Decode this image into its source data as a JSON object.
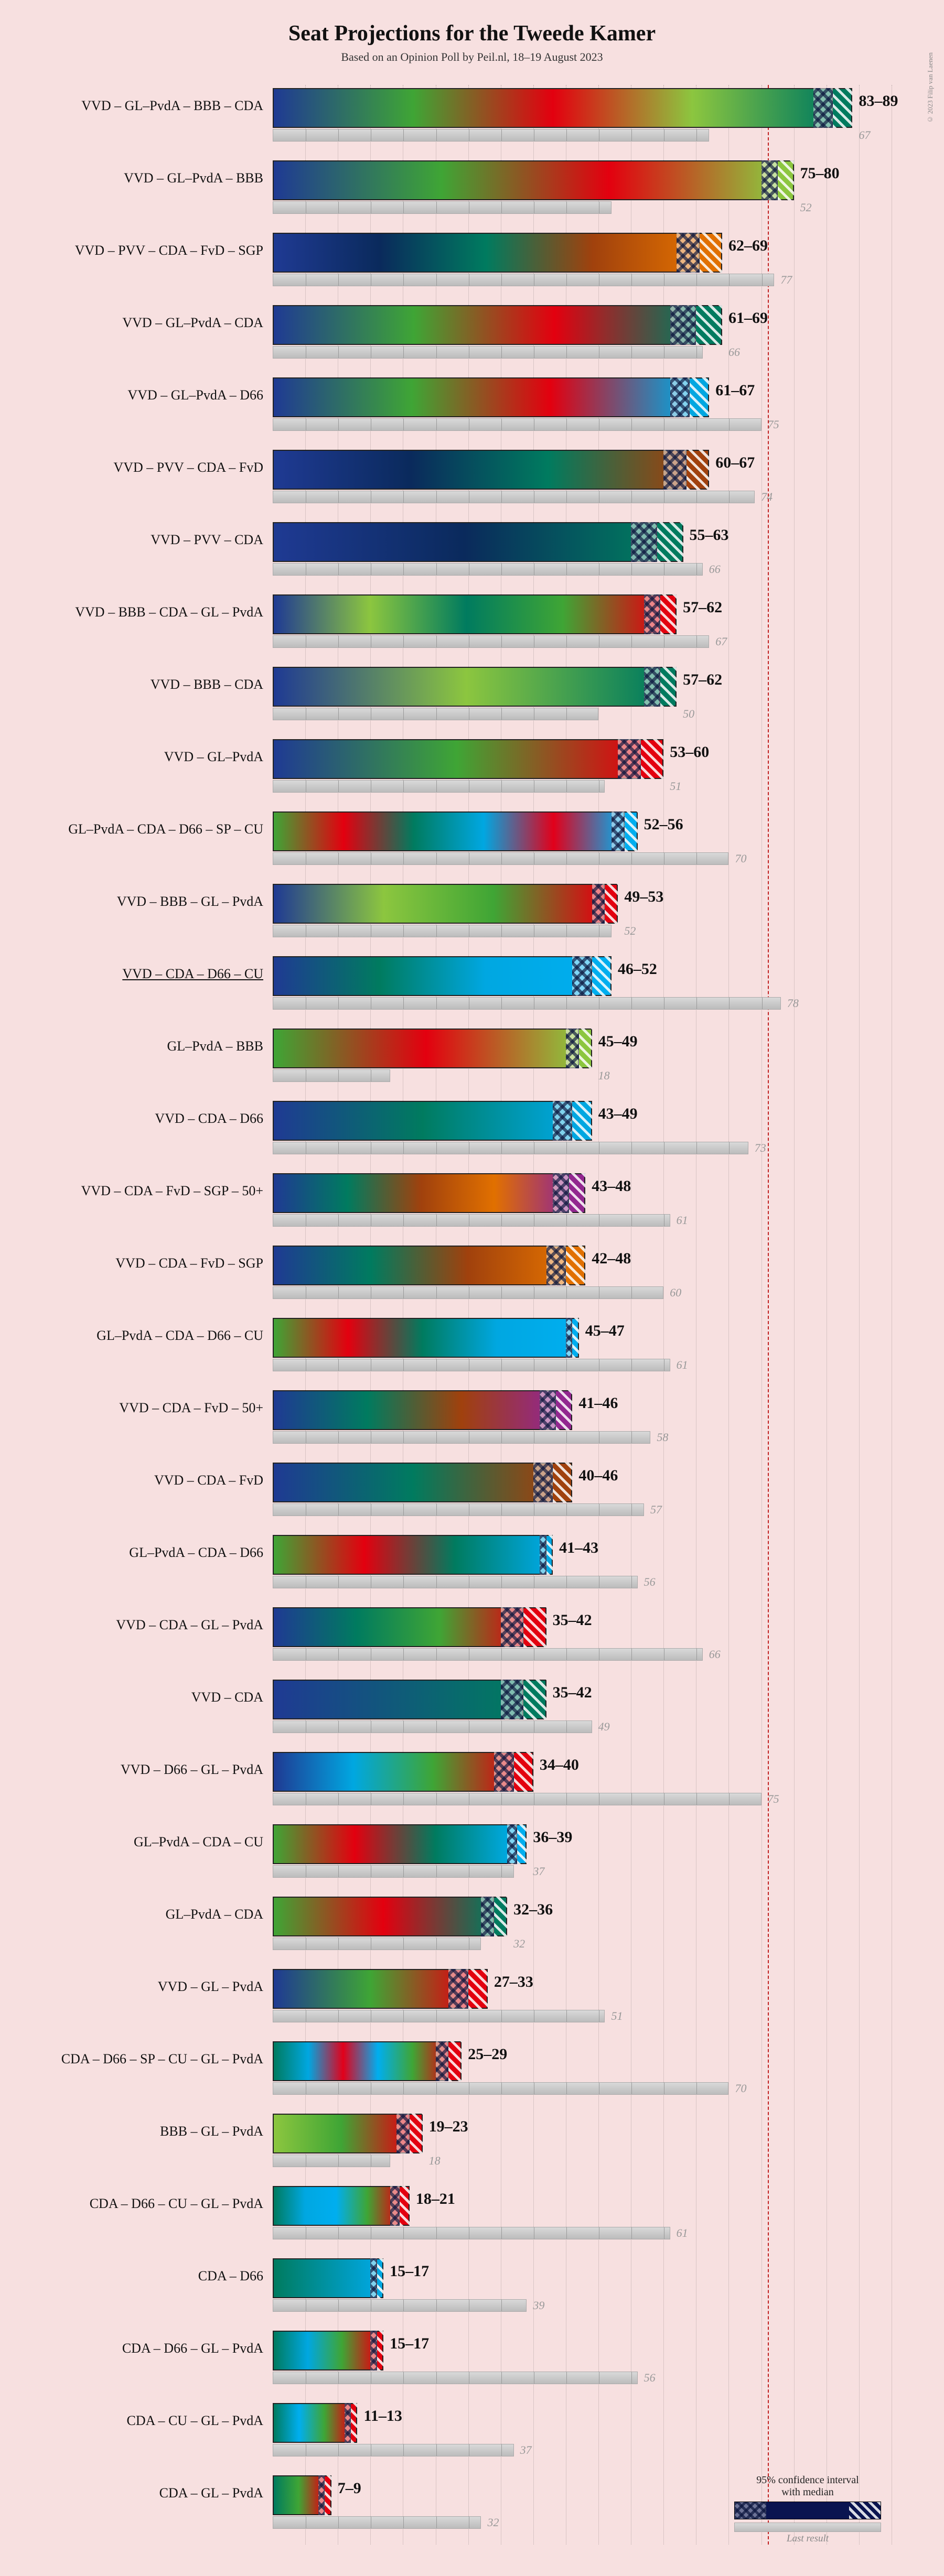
{
  "title": "Seat Projections for the Tweede Kamer",
  "subtitle": "Based on an Opinion Poll by Peil.nl, 18–19 August 2023",
  "copyright": "© 2023 Filip van Laenen",
  "background_color": "#f7e0e0",
  "scale": {
    "min": 0,
    "max": 95,
    "pixels": 1180,
    "grid_step": 5,
    "majority": 76
  },
  "party_colors": {
    "VVD": "#1f3a93",
    "GL": "#3fa535",
    "PvdA": "#e3000f",
    "BBB": "#8cc63f",
    "CDA": "#007b5f",
    "PVV": "#0a2a5c",
    "FvD": "#a0410d",
    "SGP": "#e17000",
    "D66": "#00a7e1",
    "SP": "#e2001a",
    "CU": "#00aeef",
    "50+": "#92278f"
  },
  "legend": {
    "ci_label": "95% confidence interval\nwith median",
    "last_label": "Last result"
  },
  "rows": [
    {
      "label": "VVD – GL–PvdA – BBB – CDA",
      "parties": [
        "VVD",
        "GL",
        "PvdA",
        "BBB",
        "CDA"
      ],
      "low": 83,
      "high": 89,
      "last": 67,
      "underline": false
    },
    {
      "label": "VVD – GL–PvdA – BBB",
      "parties": [
        "VVD",
        "GL",
        "PvdA",
        "BBB"
      ],
      "low": 75,
      "high": 80,
      "last": 52,
      "underline": false
    },
    {
      "label": "VVD – PVV – CDA – FvD – SGP",
      "parties": [
        "VVD",
        "PVV",
        "CDA",
        "FvD",
        "SGP"
      ],
      "low": 62,
      "high": 69,
      "last": 77,
      "underline": false
    },
    {
      "label": "VVD – GL–PvdA – CDA",
      "parties": [
        "VVD",
        "GL",
        "PvdA",
        "CDA"
      ],
      "low": 61,
      "high": 69,
      "last": 66,
      "underline": false
    },
    {
      "label": "VVD – GL–PvdA – D66",
      "parties": [
        "VVD",
        "GL",
        "PvdA",
        "D66"
      ],
      "low": 61,
      "high": 67,
      "last": 75,
      "underline": false
    },
    {
      "label": "VVD – PVV – CDA – FvD",
      "parties": [
        "VVD",
        "PVV",
        "CDA",
        "FvD"
      ],
      "low": 60,
      "high": 67,
      "last": 74,
      "underline": false
    },
    {
      "label": "VVD – PVV – CDA",
      "parties": [
        "VVD",
        "PVV",
        "CDA"
      ],
      "low": 55,
      "high": 63,
      "last": 66,
      "underline": false
    },
    {
      "label": "VVD – BBB – CDA – GL – PvdA",
      "parties": [
        "VVD",
        "BBB",
        "CDA",
        "GL",
        "PvdA"
      ],
      "low": 57,
      "high": 62,
      "last": 67,
      "underline": false
    },
    {
      "label": "VVD – BBB – CDA",
      "parties": [
        "VVD",
        "BBB",
        "CDA"
      ],
      "low": 57,
      "high": 62,
      "last": 50,
      "underline": false
    },
    {
      "label": "VVD – GL–PvdA",
      "parties": [
        "VVD",
        "GL",
        "PvdA"
      ],
      "low": 53,
      "high": 60,
      "last": 51,
      "underline": false
    },
    {
      "label": "GL–PvdA – CDA – D66 – SP – CU",
      "parties": [
        "GL",
        "PvdA",
        "CDA",
        "D66",
        "SP",
        "CU"
      ],
      "low": 52,
      "high": 56,
      "last": 70,
      "underline": false
    },
    {
      "label": "VVD – BBB – GL – PvdA",
      "parties": [
        "VVD",
        "BBB",
        "GL",
        "PvdA"
      ],
      "low": 49,
      "high": 53,
      "last": 52,
      "underline": false
    },
    {
      "label": "VVD – CDA – D66 – CU",
      "parties": [
        "VVD",
        "CDA",
        "D66",
        "CU"
      ],
      "low": 46,
      "high": 52,
      "last": 78,
      "underline": true
    },
    {
      "label": "GL–PvdA – BBB",
      "parties": [
        "GL",
        "PvdA",
        "BBB"
      ],
      "low": 45,
      "high": 49,
      "last": 18,
      "underline": false
    },
    {
      "label": "VVD – CDA – D66",
      "parties": [
        "VVD",
        "CDA",
        "D66"
      ],
      "low": 43,
      "high": 49,
      "last": 73,
      "underline": false
    },
    {
      "label": "VVD – CDA – FvD – SGP – 50+",
      "parties": [
        "VVD",
        "CDA",
        "FvD",
        "SGP",
        "50+"
      ],
      "low": 43,
      "high": 48,
      "last": 61,
      "underline": false
    },
    {
      "label": "VVD – CDA – FvD – SGP",
      "parties": [
        "VVD",
        "CDA",
        "FvD",
        "SGP"
      ],
      "low": 42,
      "high": 48,
      "last": 60,
      "underline": false
    },
    {
      "label": "GL–PvdA – CDA – D66 – CU",
      "parties": [
        "GL",
        "PvdA",
        "CDA",
        "D66",
        "CU"
      ],
      "low": 45,
      "high": 47,
      "last": 61,
      "underline": false
    },
    {
      "label": "VVD – CDA – FvD – 50+",
      "parties": [
        "VVD",
        "CDA",
        "FvD",
        "50+"
      ],
      "low": 41,
      "high": 46,
      "last": 58,
      "underline": false
    },
    {
      "label": "VVD – CDA – FvD",
      "parties": [
        "VVD",
        "CDA",
        "FvD"
      ],
      "low": 40,
      "high": 46,
      "last": 57,
      "underline": false
    },
    {
      "label": "GL–PvdA – CDA – D66",
      "parties": [
        "GL",
        "PvdA",
        "CDA",
        "D66"
      ],
      "low": 41,
      "high": 43,
      "last": 56,
      "underline": false
    },
    {
      "label": "VVD – CDA – GL – PvdA",
      "parties": [
        "VVD",
        "CDA",
        "GL",
        "PvdA"
      ],
      "low": 35,
      "high": 42,
      "last": 66,
      "underline": false
    },
    {
      "label": "VVD – CDA",
      "parties": [
        "VVD",
        "CDA"
      ],
      "low": 35,
      "high": 42,
      "last": 49,
      "underline": false
    },
    {
      "label": "VVD – D66 – GL – PvdA",
      "parties": [
        "VVD",
        "D66",
        "GL",
        "PvdA"
      ],
      "low": 34,
      "high": 40,
      "last": 75,
      "underline": false
    },
    {
      "label": "GL–PvdA – CDA – CU",
      "parties": [
        "GL",
        "PvdA",
        "CDA",
        "CU"
      ],
      "low": 36,
      "high": 39,
      "last": 37,
      "underline": false
    },
    {
      "label": "GL–PvdA – CDA",
      "parties": [
        "GL",
        "PvdA",
        "CDA"
      ],
      "low": 32,
      "high": 36,
      "last": 32,
      "underline": false
    },
    {
      "label": "VVD – GL – PvdA",
      "parties": [
        "VVD",
        "GL",
        "PvdA"
      ],
      "low": 27,
      "high": 33,
      "last": 51,
      "underline": false
    },
    {
      "label": "CDA – D66 – SP – CU – GL – PvdA",
      "parties": [
        "CDA",
        "D66",
        "SP",
        "CU",
        "GL",
        "PvdA"
      ],
      "low": 25,
      "high": 29,
      "last": 70,
      "underline": false
    },
    {
      "label": "BBB – GL – PvdA",
      "parties": [
        "BBB",
        "GL",
        "PvdA"
      ],
      "low": 19,
      "high": 23,
      "last": 18,
      "underline": false
    },
    {
      "label": "CDA – D66 – CU – GL – PvdA",
      "parties": [
        "CDA",
        "D66",
        "CU",
        "GL",
        "PvdA"
      ],
      "low": 18,
      "high": 21,
      "last": 61,
      "underline": false
    },
    {
      "label": "CDA – D66",
      "parties": [
        "CDA",
        "D66"
      ],
      "low": 15,
      "high": 17,
      "last": 39,
      "underline": false
    },
    {
      "label": "CDA – D66 – GL – PvdA",
      "parties": [
        "CDA",
        "D66",
        "GL",
        "PvdA"
      ],
      "low": 15,
      "high": 17,
      "last": 56,
      "underline": false
    },
    {
      "label": "CDA – CU – GL – PvdA",
      "parties": [
        "CDA",
        "CU",
        "GL",
        "PvdA"
      ],
      "low": 11,
      "high": 13,
      "last": 37,
      "underline": false
    },
    {
      "label": "CDA – GL – PvdA",
      "parties": [
        "CDA",
        "GL",
        "PvdA"
      ],
      "low": 7,
      "high": 9,
      "last": 32,
      "underline": false
    }
  ]
}
